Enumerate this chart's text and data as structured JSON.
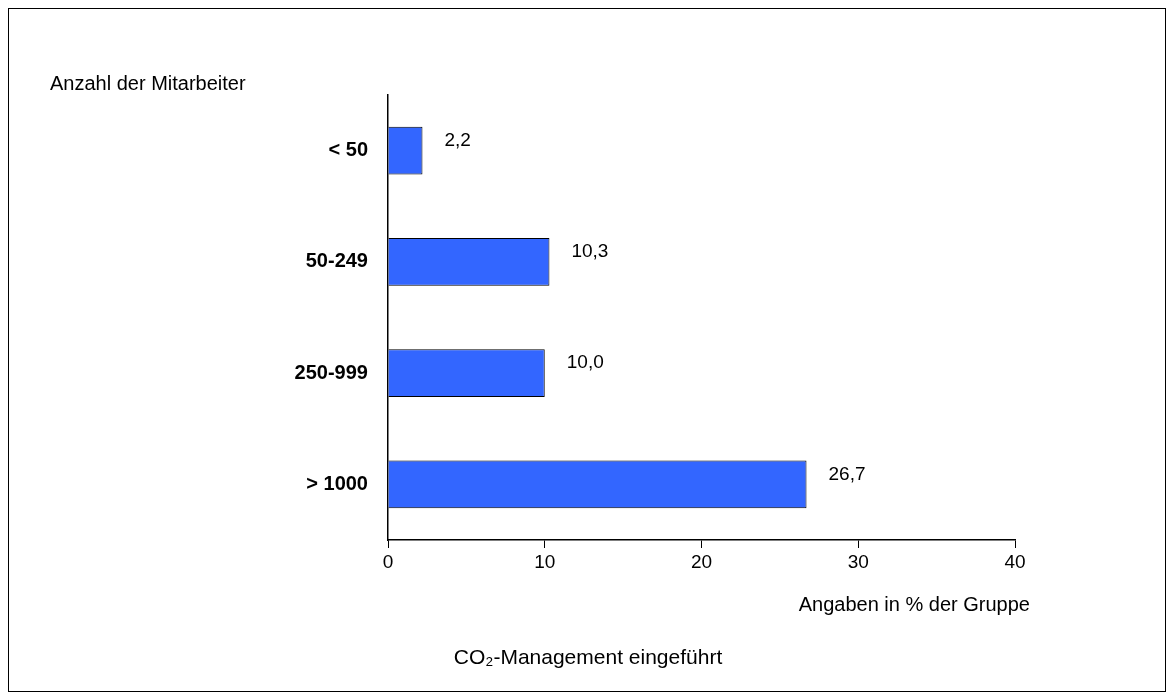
{
  "chart_data": {
    "type": "bar",
    "orientation": "horizontal",
    "title": "CO₂-Management eingeführt",
    "xlabel": "Angaben in % der Gruppe",
    "ylabel": "Anzahl der Mitarbeiter",
    "categories": [
      "< 50",
      "50-249",
      "250-999",
      "> 1000"
    ],
    "values": [
      2.2,
      10.3,
      10.0,
      26.7
    ],
    "value_labels": [
      "2,2",
      "10,3",
      "10,0",
      "26,7"
    ],
    "color": "#3366ff",
    "xlim": [
      0,
      40
    ],
    "xticks": [
      0,
      10,
      20,
      30,
      40
    ],
    "grid": false,
    "legend": false
  }
}
